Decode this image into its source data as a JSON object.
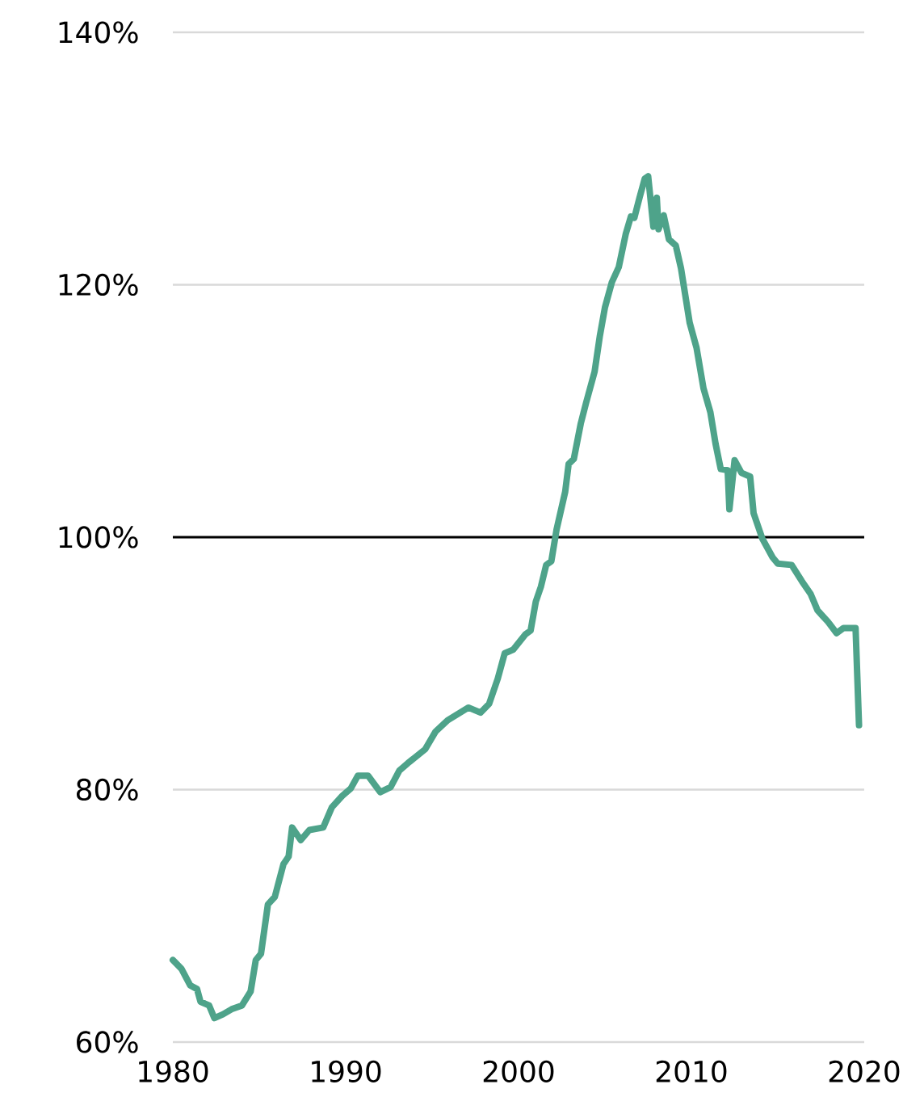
{
  "chart_data": {
    "type": "line",
    "x": [
      1980.0,
      1980.5,
      1981.0,
      1981.4,
      1981.6,
      1982.1,
      1982.4,
      1982.9,
      1983.4,
      1984.0,
      1984.5,
      1984.8,
      1985.1,
      1985.5,
      1985.9,
      1986.4,
      1986.7,
      1986.9,
      1987.4,
      1987.9,
      1988.7,
      1989.2,
      1989.8,
      1990.3,
      1990.7,
      1991.3,
      1992.0,
      1992.6,
      1993.1,
      1993.6,
      1994.6,
      1995.2,
      1995.9,
      1997.1,
      1997.8,
      1998.3,
      1998.8,
      1999.2,
      1999.7,
      2000.4,
      2000.7,
      2001.0,
      2001.3,
      2001.6,
      2001.9,
      2002.2,
      2002.7,
      2002.9,
      2003.2,
      2003.6,
      2003.9,
      2004.4,
      2004.7,
      2005.0,
      2005.4,
      2005.8,
      2006.2,
      2006.5,
      2006.7,
      2007.0,
      2007.3,
      2007.5,
      2007.8,
      2008.0,
      2008.1,
      2008.4,
      2008.7,
      2009.1,
      2009.4,
      2009.9,
      2010.3,
      2010.7,
      2011.1,
      2011.4,
      2011.7,
      2012.1,
      2012.2,
      2012.5,
      2012.9,
      2013.4,
      2013.6,
      2014.1,
      2014.7,
      2015.0,
      2015.8,
      2016.4,
      2016.9,
      2017.3,
      2017.9,
      2018.4,
      2018.8,
      2019.5,
      2019.7
    ],
    "series": [
      {
        "color": "#4ea38a",
        "values": [
          66.5,
          65.8,
          64.5,
          64.2,
          63.2,
          62.9,
          61.9,
          62.2,
          62.6,
          62.9,
          64.0,
          66.5,
          67.0,
          70.9,
          71.5,
          74.1,
          74.7,
          77.0,
          76.0,
          76.8,
          77.0,
          78.6,
          79.5,
          80.1,
          81.1,
          81.1,
          79.8,
          80.2,
          81.5,
          82.1,
          83.2,
          84.6,
          85.5,
          86.5,
          86.1,
          86.8,
          88.8,
          90.8,
          91.1,
          92.3,
          92.6,
          94.9,
          96.1,
          97.8,
          98.1,
          100.6,
          103.6,
          105.8,
          106.2,
          109.0,
          110.6,
          113.1,
          115.9,
          118.2,
          120.2,
          121.4,
          124.0,
          125.4,
          125.3,
          126.9,
          128.4,
          128.6,
          124.6,
          126.9,
          124.4,
          125.5,
          123.6,
          123.1,
          121.3,
          117.0,
          115.0,
          111.8,
          109.9,
          107.4,
          105.4,
          105.3,
          102.2,
          106.1,
          105.1,
          104.8,
          101.9,
          99.9,
          98.4,
          97.9,
          97.8,
          96.5,
          95.5,
          94.2,
          93.3,
          92.4,
          92.8,
          92.8,
          85.1
        ]
      }
    ],
    "xlim": [
      1980,
      2020
    ],
    "xticks": [
      1980,
      1990,
      2000,
      2010,
      2020
    ],
    "ylim": [
      60,
      140
    ],
    "yticks": [
      {
        "value": 60,
        "label": "60%"
      },
      {
        "value": 80,
        "label": "80%"
      },
      {
        "value": 100,
        "label": "100%"
      },
      {
        "value": 120,
        "label": "120%"
      },
      {
        "value": 140,
        "label": "140%"
      }
    ],
    "ref_lines": [
      {
        "axis": "y",
        "value": 100,
        "color": "#000000"
      }
    ],
    "grid": "y",
    "marker": "none",
    "line_style": "solid"
  }
}
